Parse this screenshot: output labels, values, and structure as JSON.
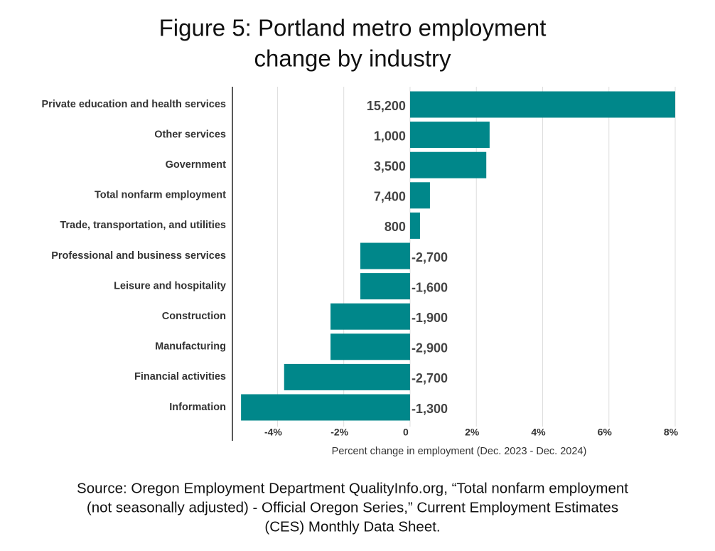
{
  "chart_data": {
    "type": "bar",
    "orientation": "horizontal",
    "title": "Figure 5: Portland metro employment",
    "title_line2": "change by industry",
    "x_label": "Percent change in employment (Dec. 2023 - Dec. 2024)",
    "source": [
      "Source: Oregon Employment Department QualityInfo.org, “Total nonfarm employment",
      "(not seasonally adjusted) - Official Oregon Series,” Current Employment Estimates",
      "(CES) Monthly Data Sheet."
    ],
    "categories": [
      "Private education and health services",
      "Other services",
      "Government",
      "Total nonfarm employment",
      "Trade, transportation, and utilities",
      "Professional and business services",
      "Leisure and hospitality",
      "Construction",
      "Manufacturing",
      "Financial activities",
      "Information"
    ],
    "values": [
      8.0,
      2.4,
      2.3,
      0.6,
      0.3,
      -1.5,
      -1.5,
      -2.4,
      -2.4,
      -3.8,
      -5.1
    ],
    "job_change_labels": [
      "15,200",
      "1,000",
      "3,500",
      "7,400",
      "800",
      "-2,700",
      "-1,600",
      "-1,900",
      "-2,900",
      "-2,700",
      "-1,300"
    ],
    "color": "#00878a",
    "xlim": [
      -5.36,
      8.3
    ],
    "xticks": [
      {
        "value": -4,
        "label": "-4%"
      },
      {
        "value": -2,
        "label": "-2%"
      },
      0,
      {
        "value": 2,
        "label": "2%"
      },
      {
        "value": 4,
        "label": "4%"
      },
      {
        "value": 6,
        "label": "6%"
      },
      {
        "value": 8,
        "label": "8%"
      }
    ],
    "grid": true
  }
}
